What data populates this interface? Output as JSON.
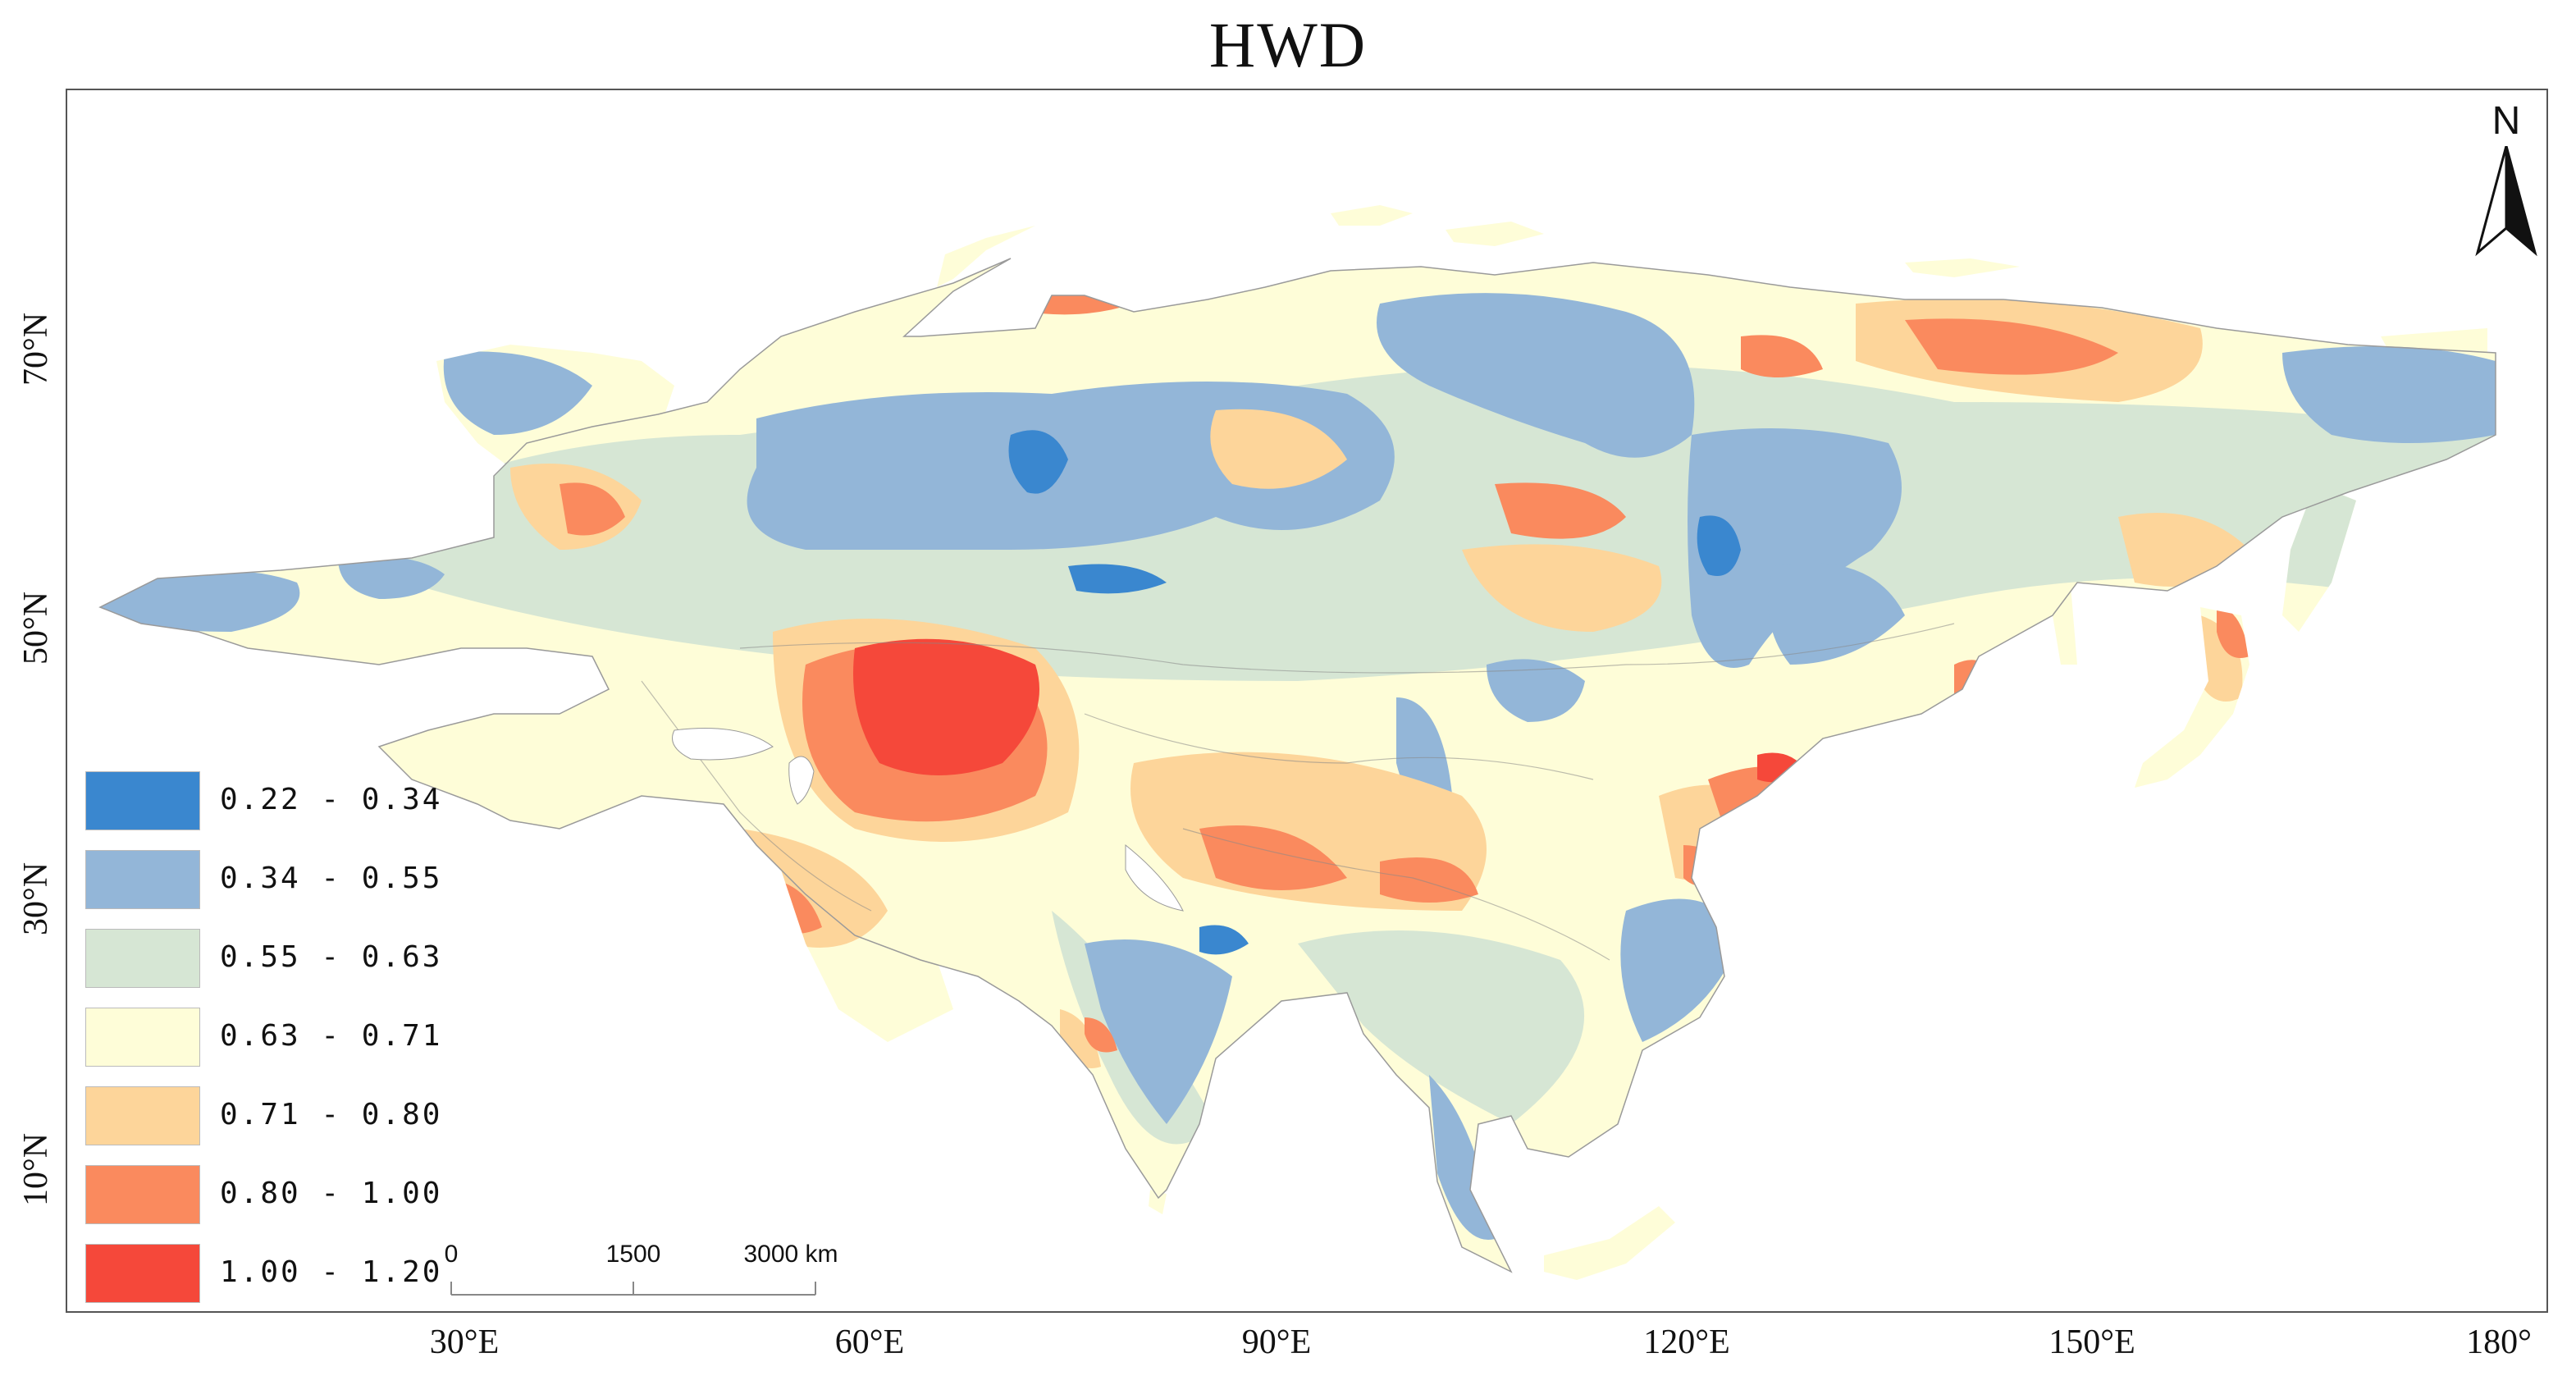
{
  "title": "HWD",
  "colors": {
    "ocean": "#ffffff",
    "c1": "#3a87cf",
    "c2": "#93b6d8",
    "c3": "#d6e6d4",
    "c4": "#fefdd8",
    "c5": "#fdd59a",
    "c6": "#fa8a5e",
    "c7": "#f5483a"
  },
  "legend": [
    {
      "label": "0.22 - 0.34",
      "color": "#3a87cf"
    },
    {
      "label": "0.34 - 0.55",
      "color": "#93b6d8"
    },
    {
      "label": "0.55 - 0.63",
      "color": "#d6e6d4"
    },
    {
      "label": "0.63 - 0.71",
      "color": "#fefdd8"
    },
    {
      "label": "0.71 - 0.80",
      "color": "#fdd59a"
    },
    {
      "label": "0.80 - 1.00",
      "color": "#fa8a5e"
    },
    {
      "label": "1.00 - 1.20",
      "color": "#f5483a"
    }
  ],
  "axes": {
    "longitude_labels": [
      "30°E",
      "60°E",
      "90°E",
      "120°E",
      "150°E",
      "180°"
    ],
    "latitude_labels": [
      "70°N",
      "50°N",
      "30°N",
      "10°N"
    ]
  },
  "scale_bar": {
    "labels": [
      "0",
      "1500",
      "3000 km"
    ]
  },
  "north_arrow": {
    "label": "N",
    "icon": "north-arrow-icon"
  }
}
